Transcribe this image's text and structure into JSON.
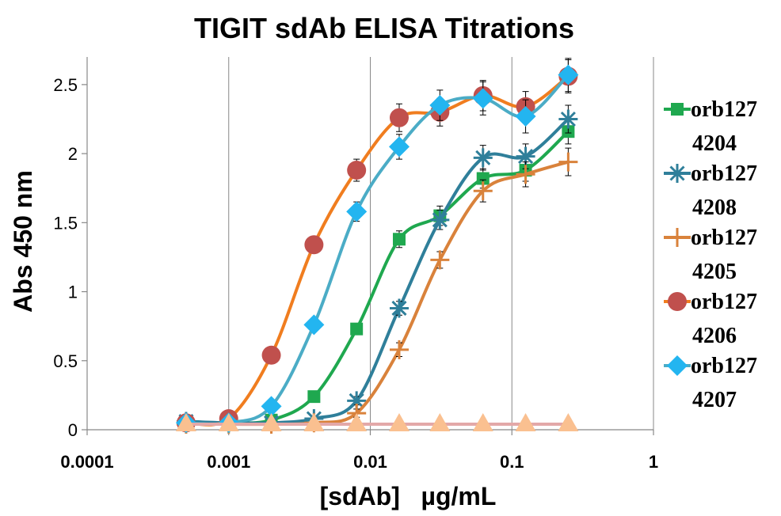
{
  "chart_data": {
    "type": "line",
    "title": "TIGIT sdAb ELISA Titrations",
    "xlabel": "[sdAb]   µg/mL",
    "ylabel": "Abs 450 nm",
    "x_scale": "log",
    "xlim": [
      0.0001,
      1
    ],
    "ylim": [
      0,
      2.7
    ],
    "x_ticks": [
      0.0001,
      0.001,
      0.01,
      0.1,
      1
    ],
    "x_tick_labels": [
      "0.0001",
      "0.001",
      "0.01",
      "0.1",
      "1"
    ],
    "y_ticks": [
      0,
      0.5,
      1,
      1.5,
      2,
      2.5
    ],
    "y_tick_labels": [
      "0",
      "0.5",
      "1",
      "1.5",
      "2",
      "2.5"
    ],
    "grid": "vertical",
    "legend_position": "right",
    "series": [
      {
        "name": "orb1274204",
        "legend_lines": [
          "orb127",
          "4204"
        ],
        "color": "#1fa84f",
        "marker": "square",
        "x": [
          0.0005,
          0.001,
          0.002,
          0.004,
          0.008,
          0.016,
          0.031,
          0.0625,
          0.125,
          0.25
        ],
        "y": [
          0.05,
          0.05,
          0.07,
          0.24,
          0.73,
          1.38,
          1.55,
          1.82,
          1.88,
          2.16
        ],
        "err": [
          0.02,
          0.02,
          0.02,
          0.03,
          0.04,
          0.06,
          0.07,
          0.07,
          0.08,
          0.09
        ]
      },
      {
        "name": "orb1274208",
        "legend_lines": [
          "orb127",
          "4208"
        ],
        "color": "#2f7f9a",
        "marker": "asterisk",
        "x": [
          0.0005,
          0.001,
          0.002,
          0.004,
          0.008,
          0.016,
          0.031,
          0.0625,
          0.125,
          0.25
        ],
        "y": [
          0.06,
          0.05,
          0.05,
          0.08,
          0.21,
          0.88,
          1.52,
          1.97,
          1.98,
          2.25
        ],
        "err": [
          0.02,
          0.02,
          0.02,
          0.02,
          0.03,
          0.05,
          0.07,
          0.09,
          0.09,
          0.1
        ]
      },
      {
        "name": "orb1274205",
        "legend_lines": [
          "orb127",
          "4205"
        ],
        "color": "#d9823b",
        "marker": "plus",
        "x": [
          0.0005,
          0.001,
          0.002,
          0.004,
          0.008,
          0.016,
          0.031,
          0.0625,
          0.125,
          0.25
        ],
        "y": [
          0.04,
          0.04,
          0.04,
          0.05,
          0.12,
          0.58,
          1.23,
          1.73,
          1.85,
          1.94
        ],
        "err": [
          0.02,
          0.02,
          0.02,
          0.02,
          0.03,
          0.05,
          0.06,
          0.08,
          0.09,
          0.1
        ]
      },
      {
        "name": "orb1274206",
        "legend_lines": [
          "orb127",
          "4206"
        ],
        "color": "#f07d1f",
        "marker_color": "#c0504d",
        "marker": "circle",
        "x": [
          0.0005,
          0.001,
          0.002,
          0.004,
          0.008,
          0.016,
          0.031,
          0.0625,
          0.125,
          0.25
        ],
        "y": [
          0.05,
          0.08,
          0.54,
          1.34,
          1.88,
          2.26,
          2.3,
          2.42,
          2.34,
          2.56
        ],
        "err": [
          0.02,
          0.02,
          0.03,
          0.05,
          0.08,
          0.1,
          0.1,
          0.11,
          0.11,
          0.12
        ]
      },
      {
        "name": "orb1274207",
        "legend_lines": [
          "orb127",
          "4207"
        ],
        "color": "#4bacc6",
        "marker_color": "#23b5f0",
        "marker": "diamond",
        "x": [
          0.0005,
          0.001,
          0.002,
          0.004,
          0.008,
          0.016,
          0.031,
          0.0625,
          0.125,
          0.25
        ],
        "y": [
          0.05,
          0.05,
          0.17,
          0.76,
          1.58,
          2.05,
          2.35,
          2.4,
          2.27,
          2.57
        ],
        "err": [
          0.02,
          0.02,
          0.02,
          0.04,
          0.07,
          0.09,
          0.11,
          0.12,
          0.12,
          0.12
        ]
      },
      {
        "name": "",
        "legend_lines": [],
        "color": "#e3a8a8",
        "marker_color": "#fac090",
        "marker": "triangle",
        "x": [
          0.0005,
          0.001,
          0.002,
          0.004,
          0.008,
          0.016,
          0.031,
          0.0625,
          0.125,
          0.25
        ],
        "y": [
          0.04,
          0.04,
          0.04,
          0.04,
          0.04,
          0.04,
          0.04,
          0.04,
          0.04,
          0.04
        ],
        "err": [
          0,
          0,
          0,
          0,
          0,
          0,
          0,
          0,
          0,
          0
        ]
      }
    ]
  }
}
